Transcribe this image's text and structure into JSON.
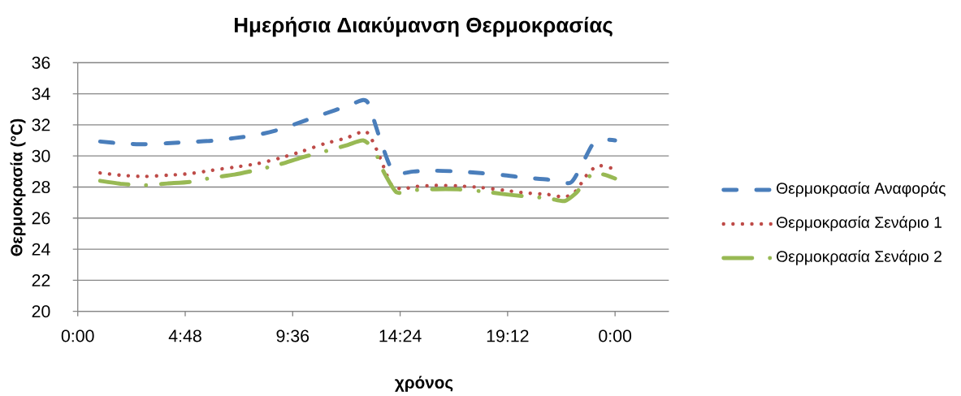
{
  "chart_data": {
    "type": "line",
    "title": "Ημερήσια Διακύμανση Θερμοκρασίας",
    "xlabel": "χρόνος",
    "ylabel": "Θερμοκρασία (°C)",
    "xlim": [
      0,
      26.4
    ],
    "xticks": [
      {
        "value": 0,
        "label": "0:00"
      },
      {
        "value": 4.8,
        "label": "4:48"
      },
      {
        "value": 9.6,
        "label": "9:36"
      },
      {
        "value": 14.4,
        "label": "14:24"
      },
      {
        "value": 19.2,
        "label": "19:12"
      },
      {
        "value": 24,
        "label": "0:00"
      }
    ],
    "ylim": [
      20,
      36
    ],
    "yticks": [
      20,
      22,
      24,
      26,
      28,
      30,
      32,
      34,
      36
    ],
    "grid": "y",
    "legend": "right",
    "series": [
      {
        "name": "Θερμοκρασία Αναφοράς",
        "color": "#4a7ebb",
        "line_style": "dashed",
        "x": [
          1,
          2,
          3,
          4,
          5,
          6,
          7,
          8,
          9,
          10,
          11,
          12,
          12.75,
          13,
          13.5,
          14,
          14.5,
          15,
          16,
          17,
          18,
          19,
          20,
          21,
          22,
          22.5,
          23,
          23.5,
          24
        ],
        "values": [
          30.93,
          30.8,
          30.75,
          30.82,
          30.9,
          30.98,
          31.15,
          31.35,
          31.7,
          32.2,
          32.7,
          33.2,
          33.6,
          33.3,
          31.1,
          29.2,
          28.9,
          29.0,
          29.05,
          29.0,
          28.9,
          28.77,
          28.6,
          28.48,
          28.27,
          29.4,
          30.75,
          31.05,
          31.0
        ]
      },
      {
        "name": "Θερμοκρασία Σενάριο 1",
        "color": "#be4b48",
        "line_style": "dotted",
        "x": [
          1,
          2,
          3,
          4,
          5,
          6,
          7,
          8,
          9,
          10,
          11,
          12,
          12.75,
          13,
          13.25,
          13.5,
          13.75,
          14,
          14.5,
          15,
          16,
          17,
          18,
          19,
          20,
          21,
          21.75,
          22.25,
          22.75,
          23.25,
          24
        ],
        "values": [
          28.91,
          28.75,
          28.68,
          28.76,
          28.86,
          29.08,
          29.28,
          29.5,
          29.85,
          30.29,
          30.78,
          31.16,
          31.59,
          31.4,
          30.72,
          29.9,
          28.98,
          28.17,
          27.86,
          28.02,
          28.1,
          28.07,
          27.97,
          27.8,
          27.62,
          27.52,
          27.36,
          27.74,
          28.8,
          29.38,
          29.15
        ]
      },
      {
        "name": "Θερμοκρασία Σενάριο 2",
        "color": "#98b954",
        "line_style": "dashdot",
        "x": [
          1,
          2,
          3,
          4,
          5,
          6,
          7,
          8,
          9,
          10,
          11,
          12,
          12.75,
          13.25,
          13.5,
          13.75,
          14.25,
          15,
          16,
          17,
          18,
          19,
          20,
          21,
          21.75,
          22.25,
          22.5,
          23,
          23.5,
          24
        ],
        "values": [
          28.4,
          28.2,
          28.12,
          28.23,
          28.33,
          28.6,
          28.8,
          29.1,
          29.45,
          29.9,
          30.28,
          30.68,
          31.0,
          30.4,
          29.5,
          28.75,
          27.65,
          27.8,
          27.86,
          27.85,
          27.73,
          27.55,
          27.4,
          27.28,
          27.1,
          27.6,
          28.05,
          28.88,
          28.8,
          28.55
        ]
      }
    ]
  }
}
